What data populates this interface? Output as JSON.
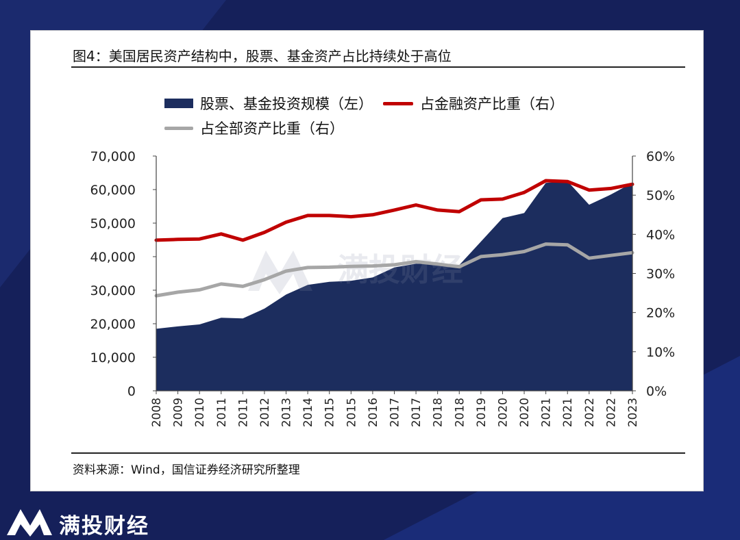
{
  "figure_title": "图4：美国居民资产结构中，股票、基金资产占比持续处于高位",
  "source_note": "资料来源：Wind，国信证券经济研究所整理",
  "watermark_text": "满投财经",
  "brand_name": "满投财经",
  "colors": {
    "background": "#15205a",
    "area": "#1c2d5e",
    "red_line": "#c00000",
    "gray_line": "#a6a6a6"
  },
  "chart_data": {
    "type": "area",
    "categories": [
      "2008",
      "2009",
      "2010",
      "2011",
      "2011",
      "2012",
      "2013",
      "2014",
      "2015",
      "2015",
      "2016",
      "2017",
      "2017",
      "2018",
      "2018",
      "2019",
      "2020",
      "2020",
      "2021",
      "2021",
      "2022",
      "2022",
      "2023"
    ],
    "series": [
      {
        "name": "股票、基金投资规模（左）",
        "type": "area",
        "axis": "left",
        "values": [
          18500,
          19200,
          19800,
          21800,
          21600,
          24500,
          28700,
          31600,
          32500,
          32800,
          33800,
          36800,
          37900,
          37800,
          37500,
          44500,
          51500,
          53000,
          62000,
          62500,
          55500,
          58500,
          62000
        ]
      },
      {
        "name": "占金融资产比重（右）",
        "type": "line",
        "axis": "right",
        "values": [
          0.385,
          0.387,
          0.388,
          0.401,
          0.385,
          0.405,
          0.431,
          0.448,
          0.448,
          0.445,
          0.45,
          0.462,
          0.475,
          0.462,
          0.458,
          0.488,
          0.49,
          0.507,
          0.537,
          0.535,
          0.513,
          0.517,
          0.528
        ]
      },
      {
        "name": "占全部资产比重（右）",
        "type": "line",
        "axis": "right",
        "values": [
          0.243,
          0.252,
          0.258,
          0.273,
          0.267,
          0.284,
          0.306,
          0.315,
          0.316,
          0.318,
          0.319,
          0.322,
          0.33,
          0.324,
          0.317,
          0.343,
          0.348,
          0.356,
          0.375,
          0.373,
          0.339,
          0.346,
          0.353
        ]
      }
    ],
    "y_left": {
      "min": 0,
      "max": 70000,
      "ticks": [
        "0",
        "10,000",
        "20,000",
        "30,000",
        "40,000",
        "50,000",
        "60,000",
        "70,000"
      ]
    },
    "y_right": {
      "min": 0,
      "max": 0.6,
      "ticks": [
        "0%",
        "10%",
        "20%",
        "30%",
        "40%",
        "50%",
        "60%"
      ]
    },
    "legend_position": "top",
    "grid": false
  }
}
